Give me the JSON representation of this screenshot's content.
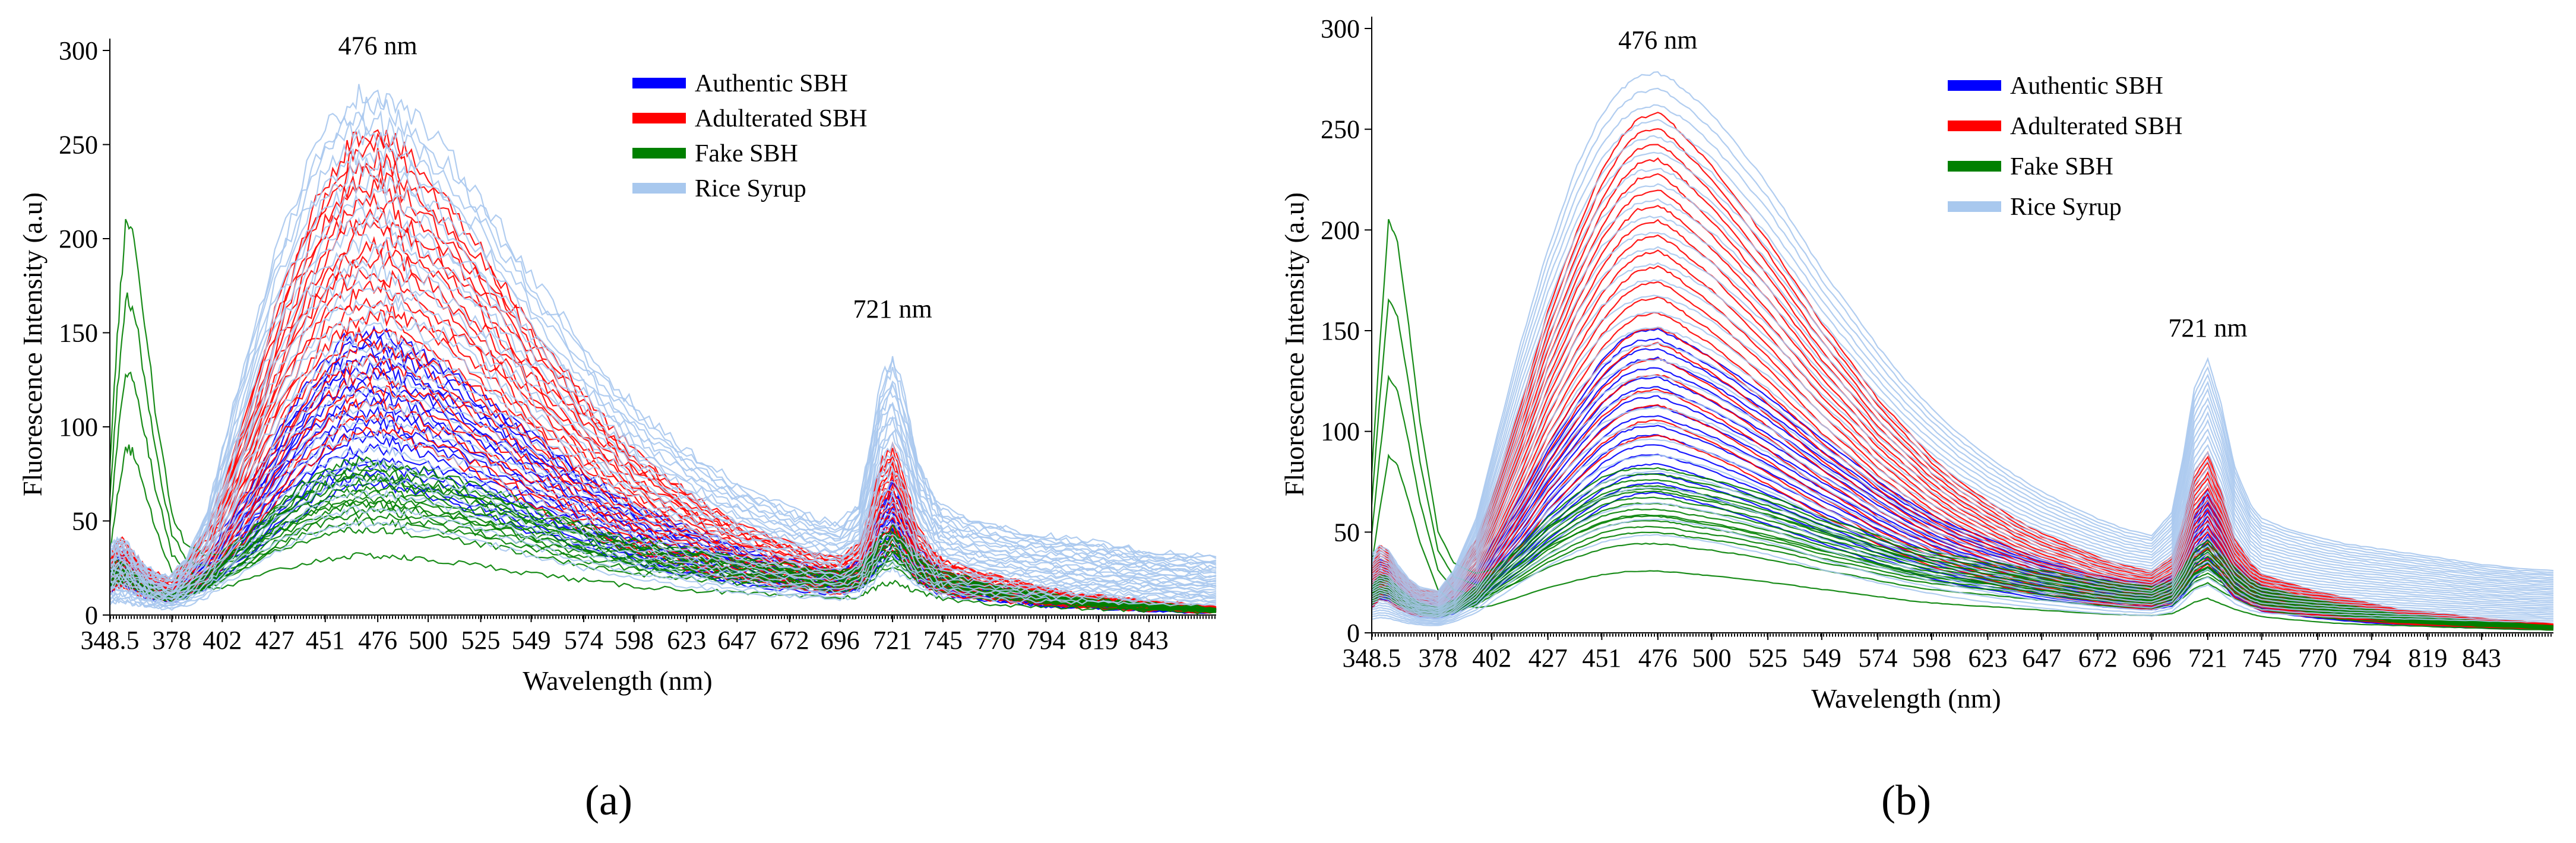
{
  "chart_data": [
    {
      "type": "line",
      "panel_label": "(a)",
      "xlabel": "Wavelength (nm)",
      "ylabel": "Fluorescence Intensity (a.u)",
      "xlim": [
        348.5,
        875
      ],
      "ylim": [
        0,
        300
      ],
      "yticks": [
        0,
        50,
        100,
        150,
        200,
        250,
        300
      ],
      "xticks": [
        "348.5",
        "378",
        "402",
        "427",
        "451",
        "476",
        "500",
        "525",
        "549",
        "574",
        "598",
        "623",
        "647",
        "672",
        "696",
        "721",
        "745",
        "770",
        "794",
        "819",
        "843"
      ],
      "grid": false,
      "legend_position": "top-center",
      "noise": 5,
      "annotations": [
        {
          "text": "476 nm",
          "x": 476,
          "y": 298
        },
        {
          "text": "721 nm",
          "x": 721,
          "y": 158
        }
      ],
      "x": [
        348.5,
        352,
        356,
        360,
        365,
        370,
        378,
        385,
        395,
        402,
        415,
        427,
        440,
        451,
        460,
        467,
        476,
        483,
        490,
        500,
        512,
        525,
        537,
        549,
        562,
        574,
        586,
        598,
        610,
        623,
        635,
        647,
        660,
        672,
        684,
        696,
        705,
        710,
        715,
        721,
        727,
        733,
        740,
        745,
        757,
        770,
        782,
        794,
        806,
        819,
        831,
        843,
        860,
        875
      ],
      "series": [
        {
          "name": "Authentic SBH",
          "color": "#0000ff",
          "count": 18,
          "values": [
            18,
            26,
            25,
            20,
            16,
            13,
            12,
            16,
            24,
            34,
            52,
            72,
            90,
            104,
            112,
            115,
            116,
            113,
            110,
            105,
            98,
            90,
            82,
            74,
            66,
            58,
            51,
            45,
            40,
            36,
            32,
            28,
            25,
            22,
            20,
            19,
            22,
            30,
            45,
            55,
            43,
            28,
            22,
            18,
            15,
            12,
            10,
            8,
            7,
            6,
            5,
            4,
            3,
            3
          ],
          "spread": [
            0.6,
            1.3
          ]
        },
        {
          "name": "Adulterated SBH",
          "color": "#ff0000",
          "count": 22,
          "values": [
            20,
            28,
            27,
            22,
            18,
            15,
            14,
            20,
            32,
            46,
            78,
            110,
            138,
            158,
            170,
            176,
            178,
            174,
            168,
            160,
            148,
            134,
            120,
            106,
            93,
            80,
            70,
            60,
            52,
            45,
            39,
            34,
            30,
            26,
            23,
            21,
            26,
            38,
            55,
            62,
            48,
            32,
            24,
            20,
            17,
            14,
            12,
            10,
            8,
            7,
            6,
            5,
            4,
            3
          ],
          "spread": [
            0.55,
            1.45
          ]
        },
        {
          "name": "Fake SBH",
          "color": "#008000",
          "count": 12,
          "values": [
            20,
            25,
            24,
            20,
            16,
            13,
            11,
            14,
            20,
            26,
            38,
            50,
            60,
            67,
            70,
            71,
            71,
            70,
            68,
            66,
            63,
            59,
            55,
            50,
            46,
            42,
            38,
            35,
            33,
            31,
            29,
            27,
            25,
            23,
            21,
            20,
            22,
            28,
            36,
            40,
            34,
            28,
            23,
            20,
            17,
            14,
            12,
            10,
            8,
            7,
            6,
            5,
            4,
            3
          ],
          "spread": [
            0.7,
            1.15
          ]
        },
        {
          "name": "Fake SBH",
          "color": "#008000",
          "count": 4,
          "values": [
            75,
            140,
            200,
            190,
            150,
            105,
            50,
            35,
            30,
            32,
            42,
            52,
            60,
            66,
            69,
            70,
            70,
            69,
            67,
            65,
            62,
            58,
            54,
            49,
            45,
            41,
            37,
            34,
            32,
            30,
            28,
            26,
            24,
            22,
            21,
            20,
            22,
            28,
            35,
            39,
            33,
            27,
            22,
            19,
            16,
            13,
            11,
            9,
            8,
            7,
            6,
            5,
            4,
            3
          ],
          "spread": [
            0.45,
            1.05
          ]
        },
        {
          "name": "Rice Syrup",
          "color": "#a8c8ee",
          "count": 30,
          "values": [
            35,
            40,
            38,
            32,
            26,
            22,
            20,
            30,
            55,
            85,
            140,
            185,
            225,
            250,
            262,
            268,
            270,
            266,
            260,
            250,
            234,
            216,
            196,
            175,
            156,
            138,
            122,
            108,
            96,
            85,
            76,
            68,
            61,
            55,
            50,
            47,
            58,
            85,
            118,
            135,
            112,
            80,
            62,
            55,
            50,
            46,
            43,
            41,
            39,
            37,
            35,
            33,
            31,
            30
          ],
          "spread": [
            0.18,
            1.03
          ]
        }
      ],
      "legend": [
        {
          "name": "Authentic SBH",
          "color": "#0000ff"
        },
        {
          "name": "Adulterated SBH",
          "color": "#ff0000"
        },
        {
          "name": "Fake SBH",
          "color": "#008000"
        },
        {
          "name": "Rice Syrup",
          "color": "#a8c8ee"
        }
      ]
    },
    {
      "type": "line",
      "panel_label": "(b)",
      "xlabel": "Wavelength (nm)",
      "ylabel": "Fluorescence Intensity (a.u)",
      "xlim": [
        348.5,
        875
      ],
      "ylim": [
        0,
        300
      ],
      "yticks": [
        0,
        50,
        100,
        150,
        200,
        250,
        300
      ],
      "xticks": [
        "348.5",
        "378",
        "402",
        "427",
        "451",
        "476",
        "500",
        "525",
        "549",
        "574",
        "598",
        "623",
        "647",
        "672",
        "696",
        "721",
        "745",
        "770",
        "794",
        "819",
        "843"
      ],
      "grid": false,
      "legend_position": "top-right",
      "noise": 0.6,
      "annotations": [
        {
          "text": "476 nm",
          "x": 476,
          "y": 290
        },
        {
          "text": "721 nm",
          "x": 721,
          "y": 147
        }
      ],
      "x": [
        348.5,
        352,
        356,
        360,
        365,
        370,
        378,
        385,
        395,
        402,
        415,
        427,
        440,
        451,
        460,
        467,
        476,
        483,
        490,
        500,
        512,
        525,
        537,
        549,
        562,
        574,
        586,
        598,
        610,
        623,
        635,
        647,
        660,
        672,
        684,
        696,
        705,
        710,
        715,
        721,
        727,
        733,
        740,
        745,
        757,
        770,
        782,
        794,
        806,
        819,
        831,
        843,
        860,
        875
      ],
      "series": [
        {
          "name": "Authentic SBH",
          "color": "#0000ff",
          "count": 18,
          "values": [
            20,
            28,
            27,
            21,
            16,
            13,
            12,
            16,
            24,
            34,
            52,
            72,
            90,
            104,
            112,
            115,
            116,
            113,
            110,
            105,
            98,
            90,
            82,
            74,
            66,
            58,
            51,
            45,
            40,
            36,
            32,
            28,
            25,
            22,
            20,
            19,
            22,
            30,
            45,
            55,
            43,
            28,
            22,
            18,
            15,
            12,
            10,
            8,
            7,
            6,
            5,
            4,
            3,
            3
          ],
          "spread": [
            0.6,
            1.3
          ]
        },
        {
          "name": "Adulterated SBH",
          "color": "#ff0000",
          "count": 22,
          "values": [
            22,
            30,
            28,
            22,
            18,
            15,
            14,
            20,
            32,
            46,
            78,
            110,
            138,
            158,
            170,
            176,
            178,
            174,
            168,
            160,
            148,
            134,
            120,
            106,
            93,
            80,
            70,
            60,
            52,
            45,
            39,
            34,
            30,
            26,
            23,
            21,
            26,
            38,
            55,
            62,
            48,
            32,
            24,
            20,
            17,
            14,
            12,
            10,
            8,
            7,
            6,
            5,
            4,
            3
          ],
          "spread": [
            0.55,
            1.45
          ]
        },
        {
          "name": "Fake SBH",
          "color": "#008000",
          "count": 12,
          "values": [
            20,
            25,
            24,
            20,
            16,
            13,
            11,
            14,
            20,
            26,
            38,
            50,
            60,
            67,
            70,
            71,
            71,
            70,
            68,
            66,
            63,
            59,
            55,
            50,
            46,
            42,
            38,
            35,
            33,
            31,
            29,
            27,
            25,
            23,
            21,
            20,
            22,
            28,
            36,
            40,
            34,
            28,
            23,
            20,
            17,
            14,
            12,
            10,
            8,
            7,
            6,
            5,
            4,
            3
          ],
          "spread": [
            0.7,
            1.15
          ]
        },
        {
          "name": "Fake SBH",
          "color": "#008000",
          "count": 4,
          "values": [
            75,
            135,
            195,
            185,
            145,
            100,
            48,
            33,
            28,
            30,
            40,
            50,
            58,
            64,
            67,
            68,
            68,
            67,
            65,
            63,
            60,
            56,
            52,
            48,
            44,
            40,
            36,
            33,
            31,
            29,
            27,
            25,
            23,
            21,
            20,
            19,
            21,
            27,
            34,
            38,
            32,
            26,
            21,
            18,
            15,
            12,
            10,
            9,
            8,
            7,
            6,
            5,
            4,
            3
          ],
          "spread": [
            0.45,
            1.05
          ]
        },
        {
          "name": "Rice Syrup",
          "color": "#a8c8ee",
          "count": 30,
          "values": [
            38,
            42,
            40,
            33,
            26,
            22,
            20,
            30,
            55,
            85,
            140,
            185,
            225,
            250,
            262,
            268,
            270,
            266,
            260,
            250,
            234,
            216,
            196,
            175,
            156,
            138,
            122,
            108,
            96,
            85,
            76,
            68,
            61,
            55,
            50,
            47,
            58,
            85,
            118,
            132,
            110,
            80,
            62,
            55,
            50,
            46,
            43,
            41,
            39,
            37,
            35,
            33,
            31,
            30
          ],
          "spread": [
            0.18,
            1.03
          ]
        }
      ],
      "legend": [
        {
          "name": "Authentic SBH",
          "color": "#0000ff"
        },
        {
          "name": "Adulterated SBH",
          "color": "#ff0000"
        },
        {
          "name": "Fake SBH",
          "color": "#008000"
        },
        {
          "name": "Rice Syrup",
          "color": "#a8c8ee"
        }
      ]
    }
  ]
}
